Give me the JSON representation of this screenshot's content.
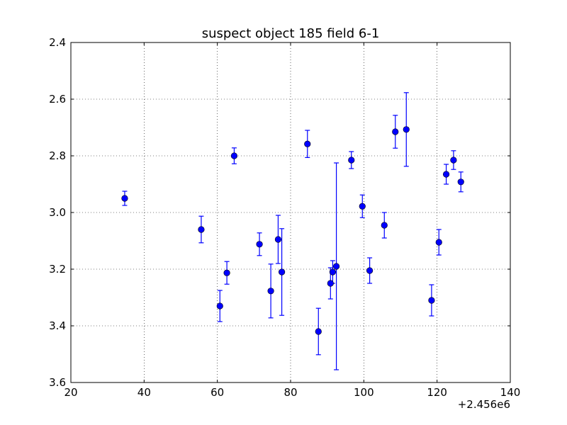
{
  "chart_data": {
    "type": "scatter",
    "title": "suspect object 185 field 6-1",
    "xlabel": "",
    "ylabel": "",
    "x_offset_label": "+2.456e6",
    "xlim": [
      20,
      140
    ],
    "ylim": [
      2.4,
      3.6
    ],
    "y_inverted": true,
    "grid": true,
    "x_ticks": [
      "20",
      "40",
      "60",
      "80",
      "100",
      "120",
      "140"
    ],
    "y_ticks": [
      "2.4",
      "2.6",
      "2.8",
      "3.0",
      "3.2",
      "3.4",
      "3.6"
    ],
    "marker_color": "#0000ff",
    "series": [
      {
        "x": [
          34.7,
          55.6,
          60.7,
          62.6,
          64.6,
          71.5,
          74.6,
          76.6,
          77.6,
          84.6,
          87.6,
          90.9,
          91.5,
          92.5,
          96.6,
          99.6,
          101.6,
          105.6,
          108.6,
          111.6,
          118.5,
          120.5,
          122.5,
          124.5,
          126.5
        ],
        "y": [
          2.95,
          3.06,
          3.33,
          3.213,
          2.8,
          3.112,
          3.277,
          3.095,
          3.21,
          2.758,
          3.42,
          3.25,
          3.21,
          3.19,
          2.815,
          2.978,
          3.205,
          3.045,
          2.715,
          2.707,
          3.31,
          3.105,
          2.865,
          2.815,
          2.892
        ],
        "yerr": [
          0.025,
          0.047,
          0.055,
          0.04,
          0.028,
          0.04,
          0.095,
          0.085,
          0.153,
          0.048,
          0.082,
          0.055,
          0.04,
          0.365,
          0.03,
          0.04,
          0.045,
          0.045,
          0.058,
          0.13,
          0.055,
          0.045,
          0.035,
          0.033,
          0.035
        ]
      }
    ]
  }
}
